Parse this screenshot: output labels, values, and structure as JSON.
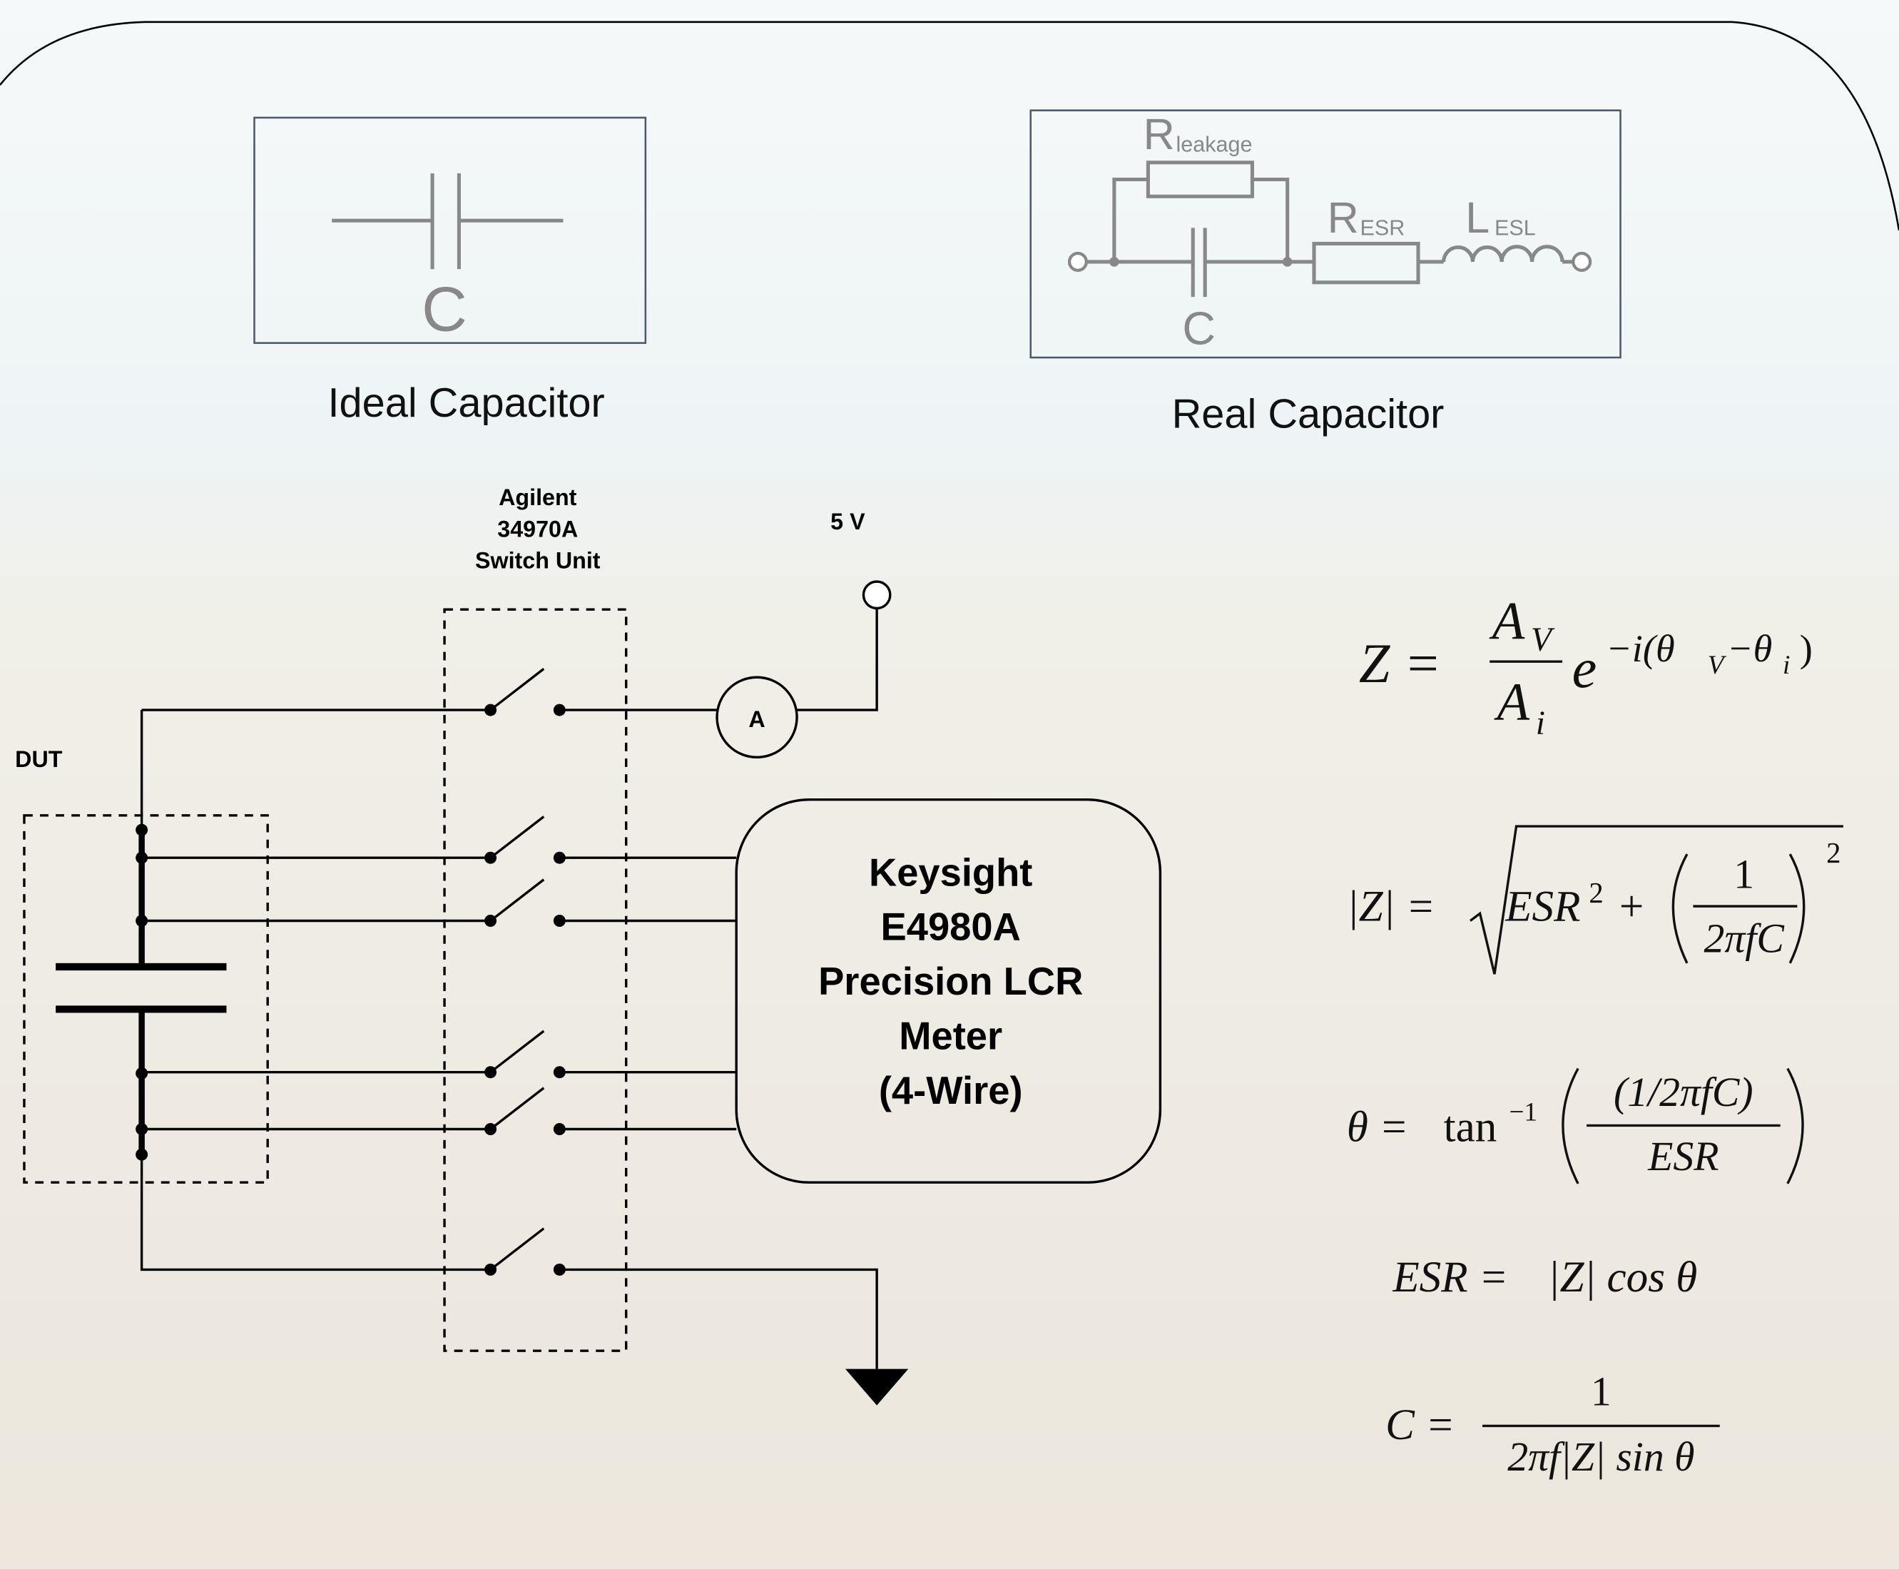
{
  "ideal": {
    "symbol": "C",
    "caption": "Ideal Capacitor"
  },
  "real": {
    "r_leakage": "R",
    "r_leakage_sub": "leakage",
    "r_esr": "R",
    "r_esr_sub": "ESR",
    "l_esl": "L",
    "l_esl_sub": "ESL",
    "cap": "C",
    "caption": "Real Capacitor"
  },
  "circuit": {
    "switch_unit": [
      "Agilent",
      "34970A",
      "Switch Unit"
    ],
    "supply": "5 V",
    "ammeter": "A",
    "dut": "DUT",
    "meter": [
      "Keysight",
      "E4980A",
      "Precision LCR",
      "Meter",
      "(4-Wire)"
    ]
  },
  "equations": [
    [
      "Z =",
      "A",
      "V",
      "A",
      "i",
      "e",
      "−i(θ",
      "V",
      "−θ",
      "i",
      ")"
    ],
    [
      "|Z| =",
      "ESR",
      "2",
      "+",
      "1",
      "2πfC",
      "2"
    ],
    [
      "θ =",
      "tan",
      "−1",
      "(1/2πfC)",
      "ESR"
    ],
    [
      "ESR =",
      "|Z| cos θ"
    ],
    [
      "C =",
      "1",
      "2πf|Z| sin θ"
    ]
  ]
}
